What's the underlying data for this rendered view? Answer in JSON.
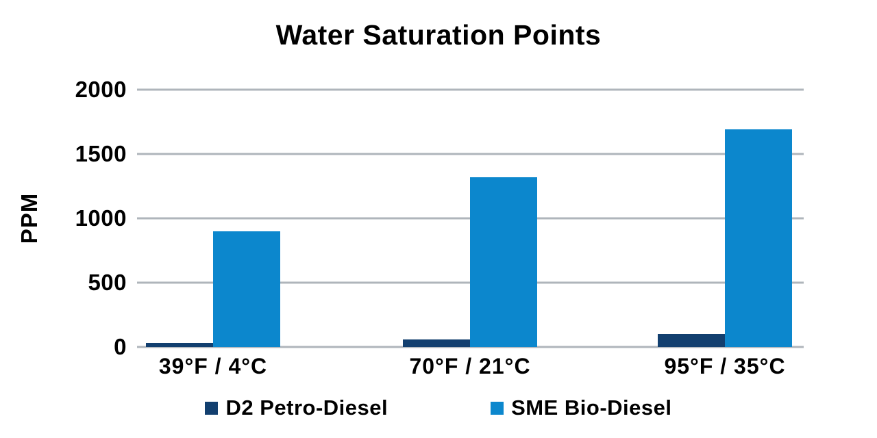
{
  "title": "Water Saturation Points",
  "chart_data": {
    "type": "bar",
    "title": "Water Saturation Points",
    "xlabel": "",
    "ylabel": "PPM",
    "categories": [
      "39°F / 4°C",
      "70°F / 21°C",
      "95°F / 35°C"
    ],
    "series": [
      {
        "name": "D2 Petro-Diesel",
        "color": "#123F6F",
        "values": [
          30,
          60,
          100
        ]
      },
      {
        "name": "SME Bio-Diesel",
        "color": "#0C87CD",
        "values": [
          900,
          1320,
          1690
        ]
      }
    ],
    "ylim": [
      0,
      2000
    ],
    "yticks": [
      2000,
      1500,
      1000,
      500,
      0
    ],
    "grid": "horizontal",
    "gridline_color": "#AFB5BB",
    "legend_position": "bottom",
    "text_color": "#000000",
    "background_color": "#FFFFFF"
  }
}
